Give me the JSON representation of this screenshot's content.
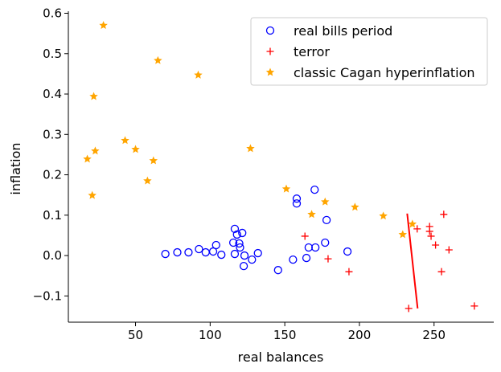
{
  "chart_data": {
    "type": "scatter",
    "xlabel": "real balances",
    "ylabel": "inflation",
    "xlim": [
      5,
      290
    ],
    "ylim": [
      -0.165,
      0.605
    ],
    "xticks": [
      50,
      100,
      150,
      200,
      250
    ],
    "yticks": [
      -0.1,
      0.0,
      0.1,
      0.2,
      0.3,
      0.4,
      0.5,
      0.6
    ],
    "ytick_labels": [
      "−0.1",
      "0.0",
      "0.1",
      "0.2",
      "0.3",
      "0.4",
      "0.5",
      "0.6"
    ],
    "legend_position": "top-right",
    "series": [
      {
        "name": "real bills period",
        "marker": "circle-open",
        "color": "#0000ff",
        "points": [
          [
            70,
            0.004
          ],
          [
            78,
            0.008
          ],
          [
            85.5,
            0.008
          ],
          [
            92.5,
            0.016
          ],
          [
            97,
            0.008
          ],
          [
            102,
            0.01
          ],
          [
            104,
            0.026
          ],
          [
            107.5,
            0.002
          ],
          [
            116.5,
            0.066
          ],
          [
            118,
            0.052
          ],
          [
            121.5,
            0.056
          ],
          [
            115.5,
            0.032
          ],
          [
            119.5,
            0.03
          ],
          [
            120,
            0.02
          ],
          [
            116.5,
            0.004
          ],
          [
            123,
            0.0
          ],
          [
            122.5,
            -0.026
          ],
          [
            128,
            -0.01
          ],
          [
            132,
            0.006
          ],
          [
            145.5,
            -0.036
          ],
          [
            155.5,
            -0.01
          ],
          [
            158,
            0.141
          ],
          [
            158,
            0.129
          ],
          [
            170,
            0.163
          ],
          [
            178,
            0.088
          ],
          [
            164.5,
            -0.006
          ],
          [
            166,
            0.02
          ],
          [
            170.5,
            0.02
          ],
          [
            177,
            0.032
          ],
          [
            192,
            0.01
          ]
        ]
      },
      {
        "name": "terror",
        "marker": "plus",
        "color": "#ff0000",
        "points": [
          [
            256.5,
            0.102
          ],
          [
            238.7,
            0.066
          ],
          [
            247,
            0.072
          ],
          [
            247,
            0.06
          ],
          [
            248,
            0.048
          ],
          [
            251,
            0.026
          ],
          [
            260,
            0.014
          ],
          [
            255,
            -0.04
          ],
          [
            193,
            -0.04
          ],
          [
            233,
            -0.131
          ],
          [
            277,
            -0.125
          ],
          [
            163.5,
            0.048
          ],
          [
            179,
            -0.008
          ]
        ]
      },
      {
        "name": "classic Cagan hyperinflation",
        "marker": "star",
        "color": "#ffa500",
        "points": [
          [
            28.5,
            0.57
          ],
          [
            65,
            0.483
          ],
          [
            92,
            0.447
          ],
          [
            22,
            0.394
          ],
          [
            43,
            0.285
          ],
          [
            50,
            0.263
          ],
          [
            62,
            0.235
          ],
          [
            58,
            0.185
          ],
          [
            21,
            0.149
          ],
          [
            17.7,
            0.239
          ],
          [
            23,
            0.259
          ],
          [
            127,
            0.265
          ],
          [
            151,
            0.165
          ],
          [
            168,
            0.102
          ],
          [
            177,
            0.133
          ],
          [
            197,
            0.12
          ],
          [
            216,
            0.098
          ],
          [
            229,
            0.052
          ],
          [
            235.5,
            0.078
          ]
        ]
      }
    ],
    "line": {
      "color": "#ff0000",
      "points": [
        [
          232,
          0.104
        ],
        [
          239,
          -0.131
        ]
      ]
    }
  }
}
